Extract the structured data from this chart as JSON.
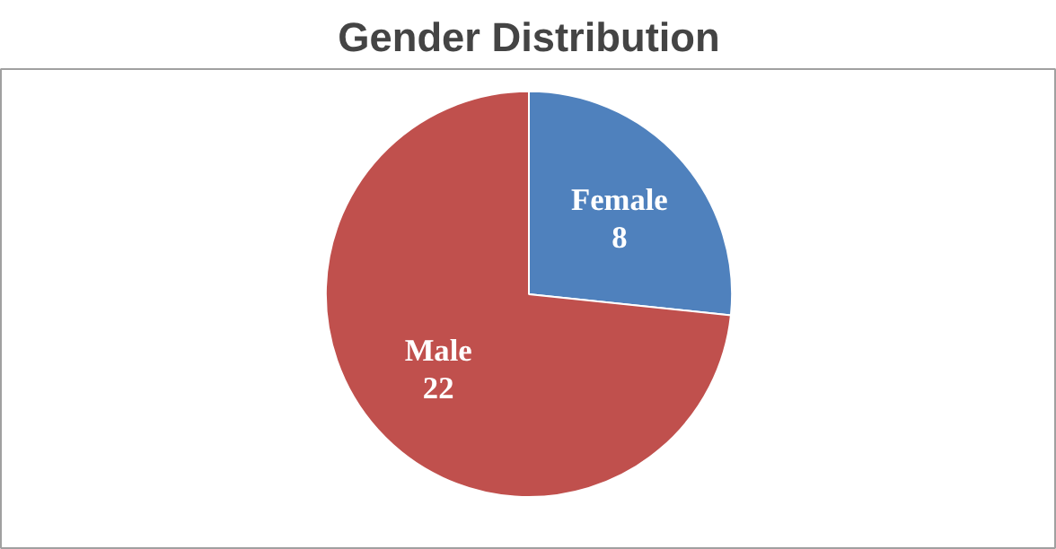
{
  "chart_data": {
    "type": "pie",
    "title": "Gender Distribution",
    "categories": [
      "Female",
      "Male"
    ],
    "values": [
      8,
      22
    ],
    "colors": [
      "#4f81bd",
      "#c0504d"
    ],
    "data_labels": true
  }
}
